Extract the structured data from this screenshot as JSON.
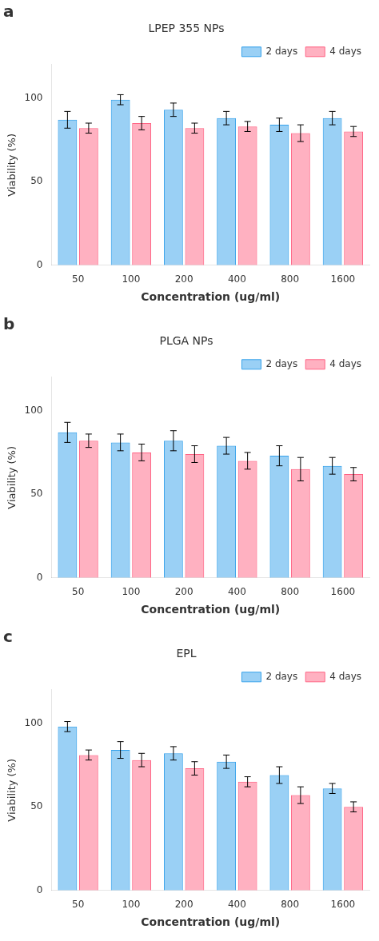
{
  "chart_data": [
    {
      "type": "bar",
      "annotation": "a",
      "title": "LPEP 355 NPs",
      "xlabel": "Concentration (ug/ml)",
      "ylabel": "Viability (%)",
      "categories": [
        "50",
        "100",
        "200",
        "400",
        "800",
        "1600"
      ],
      "series": [
        {
          "name": "2 days",
          "values": [
            87,
            99,
            93,
            88,
            84,
            88
          ],
          "errors": [
            5,
            3,
            4,
            4,
            4,
            4
          ]
        },
        {
          "name": "4 days",
          "values": [
            82,
            85,
            82,
            83,
            79,
            80
          ],
          "errors": [
            3,
            4,
            3,
            3,
            5,
            3
          ]
        }
      ],
      "ylim": [
        0,
        120
      ],
      "yticks": [
        0,
        50,
        100
      ],
      "grid": false,
      "legend": "upper right"
    },
    {
      "type": "bar",
      "annotation": "b",
      "title": "PLGA NPs",
      "xlabel": "Concentration (ug/ml)",
      "ylabel": "Viability (%)",
      "categories": [
        "50",
        "100",
        "200",
        "400",
        "800",
        "1600"
      ],
      "series": [
        {
          "name": "2 days",
          "values": [
            87,
            81,
            82,
            79,
            73,
            67
          ],
          "errors": [
            6,
            5,
            6,
            5,
            6,
            5
          ]
        },
        {
          "name": "4 days",
          "values": [
            82,
            75,
            74,
            70,
            65,
            62
          ],
          "errors": [
            4,
            5,
            5,
            5,
            7,
            4
          ]
        }
      ],
      "ylim": [
        0,
        120
      ],
      "yticks": [
        0,
        50,
        100
      ],
      "grid": false,
      "legend": "upper right"
    },
    {
      "type": "bar",
      "annotation": "c",
      "title": "EPL",
      "xlabel": "Concentration (ug/ml)",
      "ylabel": "Viability (%)",
      "categories": [
        "50",
        "100",
        "200",
        "400",
        "800",
        "1600"
      ],
      "series": [
        {
          "name": "2 days",
          "values": [
            98,
            84,
            82,
            77,
            69,
            61
          ],
          "errors": [
            3,
            5,
            4,
            4,
            5,
            3
          ]
        },
        {
          "name": "4 days",
          "values": [
            81,
            78,
            73,
            65,
            57,
            50
          ],
          "errors": [
            3,
            4,
            4,
            3,
            5,
            3
          ]
        }
      ],
      "ylim": [
        0,
        120
      ],
      "yticks": [
        0,
        50,
        100
      ],
      "grid": false,
      "legend": "upper right"
    }
  ]
}
